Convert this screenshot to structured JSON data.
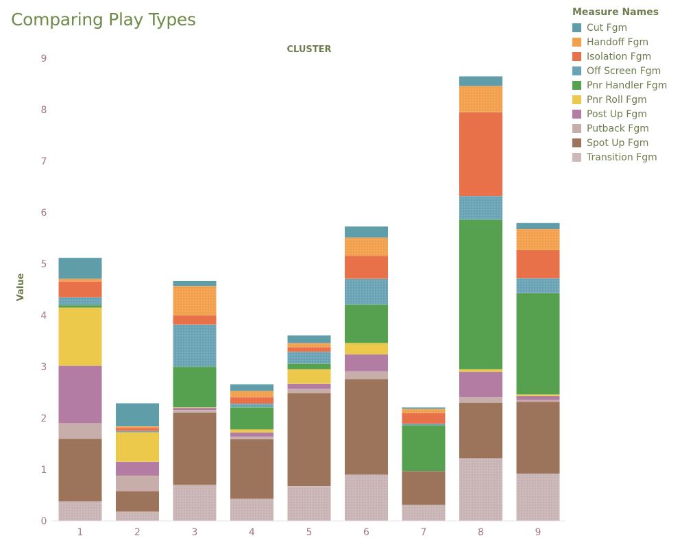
{
  "page": {
    "title": "Comparing Play Types"
  },
  "legend": {
    "title": "Measure Names"
  },
  "colors": {
    "Cut Fgm": "#5f9ea9",
    "Handoff Fgm": "#f2a04c",
    "Isolation Fgm": "#e8714a",
    "Off Screen Fgm": "#6aa3b5",
    "Pnr Handler Fgm": "#56a150",
    "Pnr Roll Fgm": "#ecc94b",
    "Post Up Fgm": "#b37ca3",
    "Putback Fgm": "#c7aeaa",
    "Spot Up Fgm": "#9c735b",
    "Transition Fgm": "#cdb8ba"
  },
  "chart_data": {
    "type": "bar",
    "stacked": true,
    "title": "Comparing Play Types",
    "column_header": "CLUSTER",
    "ylabel": "Value",
    "ylim": [
      0,
      9
    ],
    "yticks": [
      0,
      1,
      2,
      3,
      4,
      5,
      6,
      7,
      8,
      9
    ],
    "categories": [
      "1",
      "2",
      "3",
      "4",
      "5",
      "6",
      "7",
      "8",
      "9"
    ],
    "series": [
      {
        "name": "Transition Fgm",
        "values": [
          0.38,
          0.18,
          0.7,
          0.43,
          0.68,
          0.9,
          0.31,
          1.22,
          0.92
        ]
      },
      {
        "name": "Spot Up Fgm",
        "values": [
          1.22,
          0.4,
          1.41,
          1.16,
          1.81,
          1.86,
          0.66,
          1.08,
          1.4
        ]
      },
      {
        "name": "Putback Fgm",
        "values": [
          0.3,
          0.3,
          0.05,
          0.05,
          0.08,
          0.15,
          0.0,
          0.11,
          0.03
        ]
      },
      {
        "name": "Post Up Fgm",
        "values": [
          1.12,
          0.27,
          0.04,
          0.08,
          0.1,
          0.33,
          0.0,
          0.49,
          0.08
        ]
      },
      {
        "name": "Pnr Roll Fgm",
        "values": [
          1.13,
          0.57,
          0.01,
          0.06,
          0.28,
          0.22,
          0.0,
          0.05,
          0.03
        ]
      },
      {
        "name": "Pnr Handler Fgm",
        "values": [
          0.05,
          0.01,
          0.79,
          0.43,
          0.11,
          0.75,
          0.89,
          2.91,
          1.97
        ]
      },
      {
        "name": "Off Screen Fgm",
        "values": [
          0.15,
          0.02,
          0.82,
          0.07,
          0.23,
          0.5,
          0.03,
          0.46,
          0.29
        ]
      },
      {
        "name": "Isolation Fgm",
        "values": [
          0.31,
          0.06,
          0.18,
          0.13,
          0.09,
          0.45,
          0.21,
          1.63,
          0.55
        ]
      },
      {
        "name": "Handoff Fgm",
        "values": [
          0.05,
          0.03,
          0.57,
          0.12,
          0.08,
          0.35,
          0.08,
          0.51,
          0.41
        ]
      },
      {
        "name": "Cut Fgm",
        "values": [
          0.41,
          0.45,
          0.1,
          0.13,
          0.15,
          0.22,
          0.03,
          0.19,
          0.12
        ]
      }
    ],
    "legend_order": [
      "Cut Fgm",
      "Handoff Fgm",
      "Isolation Fgm",
      "Off Screen Fgm",
      "Pnr Handler Fgm",
      "Pnr Roll Fgm",
      "Post Up Fgm",
      "Putback Fgm",
      "Spot Up Fgm",
      "Transition Fgm"
    ],
    "legend_position": "top-right",
    "grid": false
  }
}
